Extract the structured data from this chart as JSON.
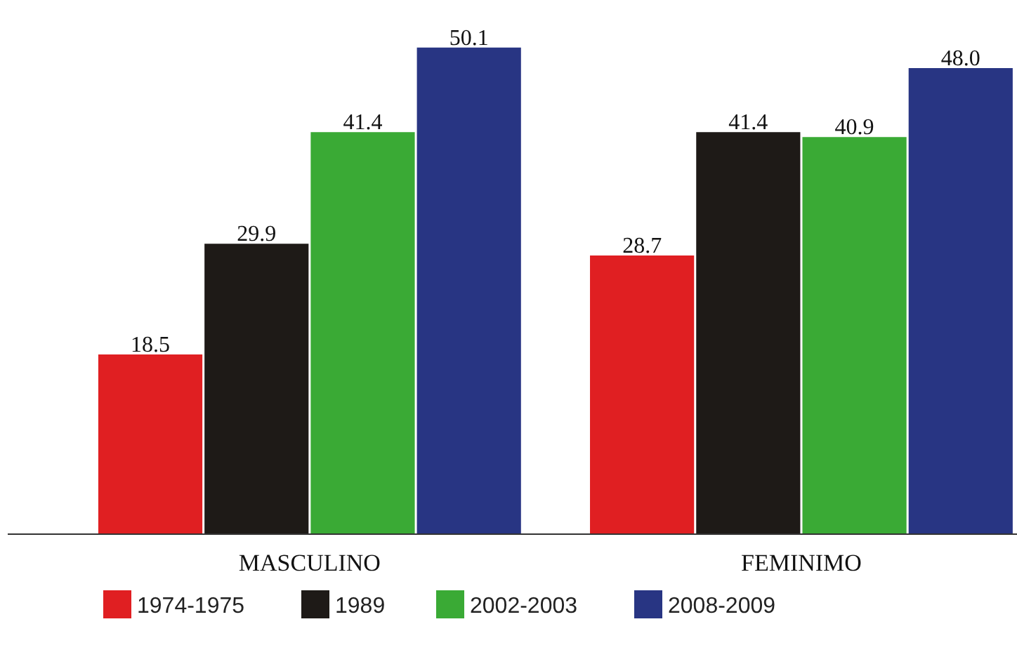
{
  "chart_data": {
    "type": "bar",
    "categories": [
      "MASCULINO",
      "FEMINIMO"
    ],
    "series": [
      {
        "name": "1974-1975",
        "color": "#e01f22",
        "values": [
          18.5,
          28.7
        ],
        "value_labels": [
          "18.5",
          "28.7"
        ]
      },
      {
        "name": "1989",
        "color": "#1e1a17",
        "values": [
          29.9,
          41.4
        ],
        "value_labels": [
          "29.9",
          "41.4"
        ]
      },
      {
        "name": "2002-2003",
        "color": "#3aaa35",
        "values": [
          41.4,
          40.9
        ],
        "value_labels": [
          "41.4",
          "40.9"
        ]
      },
      {
        "name": "2008-2009",
        "color": "#283583",
        "values": [
          50.1,
          48.0
        ],
        "value_labels": [
          "50.1",
          "48.0"
        ]
      }
    ],
    "legend": "bottom"
  }
}
